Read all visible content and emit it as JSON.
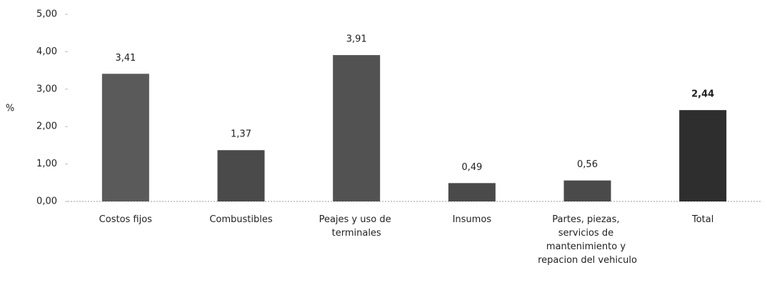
{
  "chart_data": {
    "type": "bar",
    "y_label": "%",
    "categories": [
      "Costos fijos",
      "Combustibles",
      "Peajes y uso de terminales",
      "Insumos",
      "Partes, piezas, servicios de mantenimiento y repacion del vehiculo",
      "Total"
    ],
    "values": [
      3.41,
      1.37,
      3.91,
      0.49,
      0.56,
      2.44
    ],
    "value_labels": [
      "3,41",
      "1,37",
      "3,91",
      "0,49",
      "0,56",
      "2,44"
    ],
    "colors": [
      "#5a5a5a",
      "#4a4a4a",
      "#525252",
      "#4a4a4a",
      "#4a4a4a",
      "#2e2e2e"
    ],
    "ylim": [
      0,
      5
    ],
    "yticks": [
      {
        "value": 0,
        "label": "0,00"
      },
      {
        "value": 1,
        "label": "1,00"
      },
      {
        "value": 2,
        "label": "2,00"
      },
      {
        "value": 3,
        "label": "3,00"
      },
      {
        "value": 4,
        "label": "4,00"
      },
      {
        "value": 5,
        "label": "5,00"
      }
    ]
  }
}
